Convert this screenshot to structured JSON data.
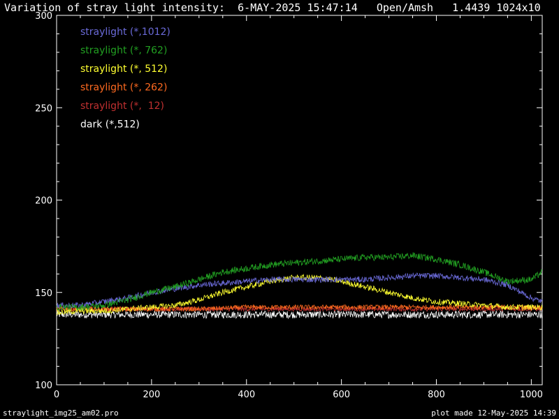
{
  "header": {
    "title": "Variation of stray light intensity:  6-MAY-2025 15:47:14   Open/Amsh   1.4439 1024x10"
  },
  "footer": {
    "left": "straylight_img25_am02.pro",
    "right": "plot made 12-May-2025 14:39"
  },
  "chart_data": {
    "type": "line",
    "title": "Variation of stray light intensity:  6-MAY-2025 15:47:14   Open/Amsh   1.4439 1024x10",
    "xlabel": "",
    "ylabel": "",
    "xlim": [
      0,
      1023
    ],
    "ylim": [
      100,
      300
    ],
    "x_ticks": [
      "0",
      "200",
      "400",
      "600",
      "800",
      "1000"
    ],
    "y_ticks": [
      "100",
      "150",
      "200",
      "250",
      "300"
    ],
    "grid": false,
    "legend_position": "top-left",
    "series": [
      {
        "name": "straylight (*,1012)",
        "color": "#6a6ad8",
        "x": [
          0,
          50,
          100,
          150,
          200,
          250,
          300,
          350,
          400,
          450,
          500,
          550,
          600,
          650,
          700,
          750,
          800,
          850,
          900,
          950,
          1000,
          1023
        ],
        "values": [
          143,
          143,
          145,
          147,
          150,
          152,
          154,
          155,
          156,
          157,
          157,
          157,
          157,
          157,
          158,
          159,
          159,
          158,
          157,
          154,
          147,
          145
        ]
      },
      {
        "name": "straylight (*, 762)",
        "color": "#22a022",
        "x": [
          0,
          50,
          100,
          150,
          200,
          250,
          300,
          350,
          400,
          450,
          500,
          550,
          600,
          650,
          700,
          750,
          800,
          850,
          900,
          950,
          1000,
          1023
        ],
        "values": [
          142,
          142,
          143,
          146,
          150,
          153,
          157,
          161,
          163,
          165,
          166,
          167,
          168,
          169,
          169,
          170,
          168,
          165,
          161,
          156,
          157,
          161
        ]
      },
      {
        "name": "straylight (*, 512)",
        "color": "#ffff30",
        "x": [
          0,
          50,
          100,
          150,
          200,
          250,
          300,
          350,
          400,
          450,
          500,
          550,
          600,
          650,
          700,
          750,
          800,
          850,
          900,
          950,
          1000,
          1023
        ],
        "values": [
          139,
          140,
          140,
          141,
          142,
          143,
          146,
          150,
          153,
          156,
          158,
          158,
          156,
          153,
          150,
          147,
          145,
          144,
          143,
          142,
          142,
          142
        ]
      },
      {
        "name": "straylight (*, 262)",
        "color": "#ff6a20",
        "x": [
          0,
          100,
          200,
          300,
          400,
          500,
          600,
          700,
          800,
          900,
          1000,
          1023
        ],
        "values": [
          141,
          141,
          141,
          141,
          142,
          142,
          142,
          142,
          142,
          142,
          142,
          142
        ]
      },
      {
        "name": "straylight (*,  12)",
        "color": "#c03030",
        "x": [
          0,
          100,
          200,
          300,
          400,
          500,
          600,
          700,
          800,
          900,
          1000,
          1023
        ],
        "values": [
          141,
          141,
          141,
          141,
          141,
          141,
          141,
          141,
          141,
          141,
          141,
          141
        ]
      },
      {
        "name": "dark (*,512)",
        "color": "#ffffff",
        "x": [
          0,
          100,
          200,
          300,
          400,
          500,
          600,
          700,
          800,
          900,
          1000,
          1023
        ],
        "values": [
          138,
          138,
          138,
          138,
          138,
          138,
          138,
          138,
          138,
          138,
          138,
          138
        ]
      }
    ]
  }
}
